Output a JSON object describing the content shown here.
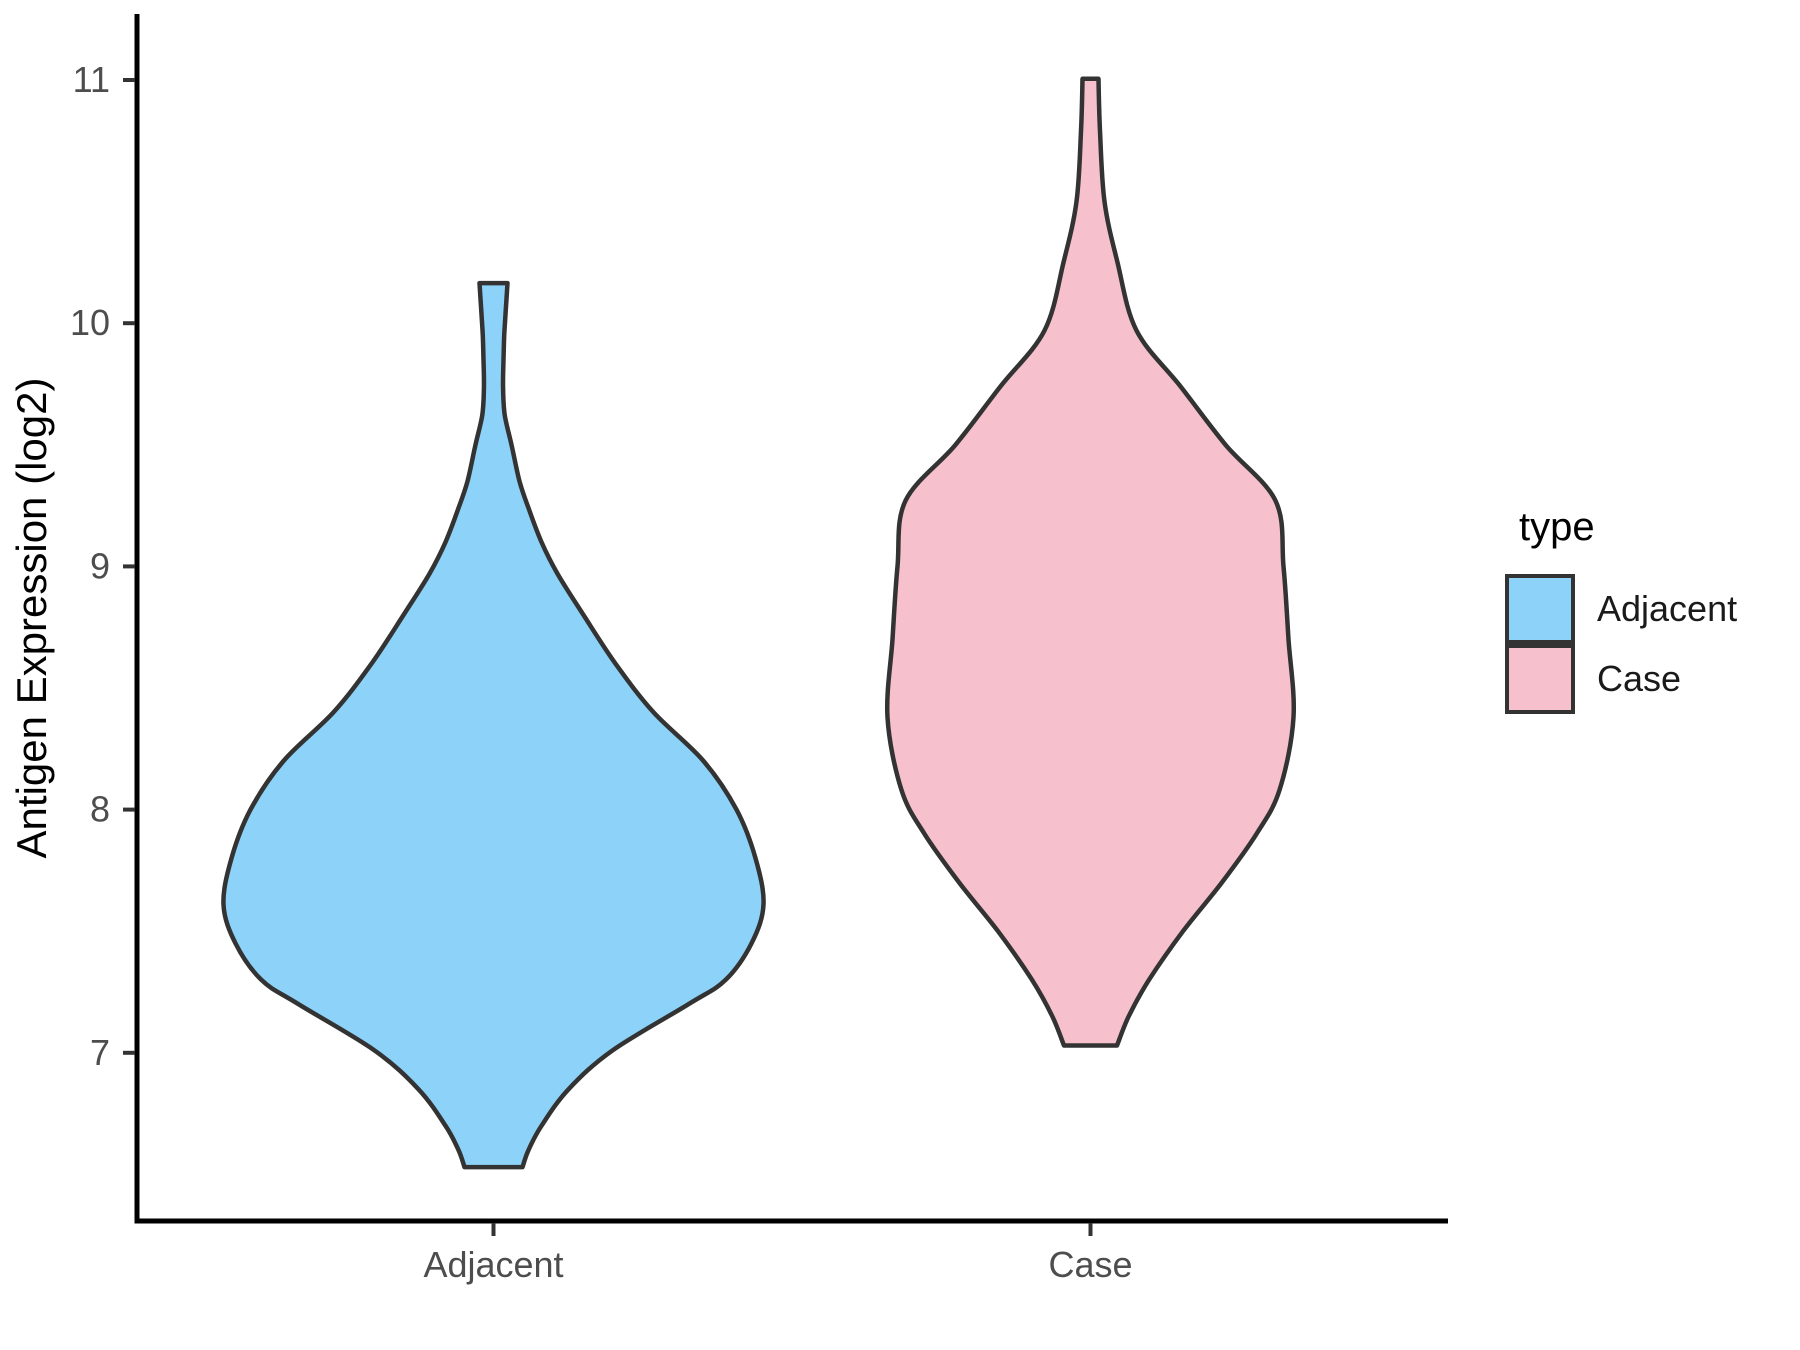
{
  "chart_data": {
    "type": "violin",
    "title": "",
    "xlabel": "",
    "ylabel": "Antigen Expression (log2)",
    "categories": [
      "Adjacent",
      "Case"
    ],
    "y_ticks": [
      7,
      8,
      9,
      10,
      11
    ],
    "ylim": [
      6.4,
      11.2
    ],
    "grid": "off",
    "legend_position": "right",
    "outline_color": "#333333",
    "axis_color": "#000000",
    "tick_label_color": "#4d4d4d",
    "series": [
      {
        "name": "Adjacent",
        "fill": "#8dd3f9",
        "category_index": 0,
        "profile": [
          [
            10.165,
            0.0235
          ],
          [
            10.05,
            0.0205
          ],
          [
            9.95,
            0.018
          ],
          [
            9.85,
            0.0168
          ],
          [
            9.73,
            0.016
          ],
          [
            9.62,
            0.019
          ],
          [
            9.5,
            0.0302
          ],
          [
            9.35,
            0.0436
          ],
          [
            9.24,
            0.0586
          ],
          [
            9.1,
            0.0804
          ],
          [
            8.97,
            0.1072
          ],
          [
            8.8,
            0.1508
          ],
          [
            8.6,
            0.2044
          ],
          [
            8.4,
            0.268
          ],
          [
            8.2,
            0.3518
          ],
          [
            8.0,
            0.407
          ],
          [
            7.8,
            0.4389
          ],
          [
            7.61,
            0.4523
          ],
          [
            7.45,
            0.4322
          ],
          [
            7.3,
            0.389
          ],
          [
            7.2,
            0.3267
          ],
          [
            7.01,
            0.1993
          ],
          [
            6.85,
            0.1256
          ],
          [
            6.7,
            0.0804
          ],
          [
            6.6,
            0.0586
          ],
          [
            6.53,
            0.0486
          ]
        ]
      },
      {
        "name": "Case",
        "fill": "#f7c0cd",
        "category_index": 1,
        "profile": [
          [
            11.005,
            0.0134
          ],
          [
            10.79,
            0.0159
          ],
          [
            10.5,
            0.0235
          ],
          [
            10.25,
            0.0452
          ],
          [
            9.97,
            0.0771
          ],
          [
            9.74,
            0.1508
          ],
          [
            9.5,
            0.2261
          ],
          [
            9.27,
            0.3099
          ],
          [
            9.0,
            0.3233
          ],
          [
            8.7,
            0.3317
          ],
          [
            8.38,
            0.34
          ],
          [
            8.08,
            0.3166
          ],
          [
            7.9,
            0.278
          ],
          [
            7.7,
            0.22
          ],
          [
            7.5,
            0.155
          ],
          [
            7.3,
            0.098
          ],
          [
            7.15,
            0.064
          ],
          [
            7.03,
            0.0444
          ]
        ]
      }
    ]
  },
  "axes": {
    "y_title": "Antigen Expression (log2)",
    "y_tick_labels": [
      "7",
      "8",
      "9",
      "10",
      "11"
    ],
    "x_tick_labels": [
      "Adjacent",
      "Case"
    ]
  },
  "legend": {
    "title": "type",
    "items": [
      {
        "label": "Adjacent",
        "color": "#8dd3f9"
      },
      {
        "label": "Case",
        "color": "#f7c0cd"
      }
    ]
  }
}
